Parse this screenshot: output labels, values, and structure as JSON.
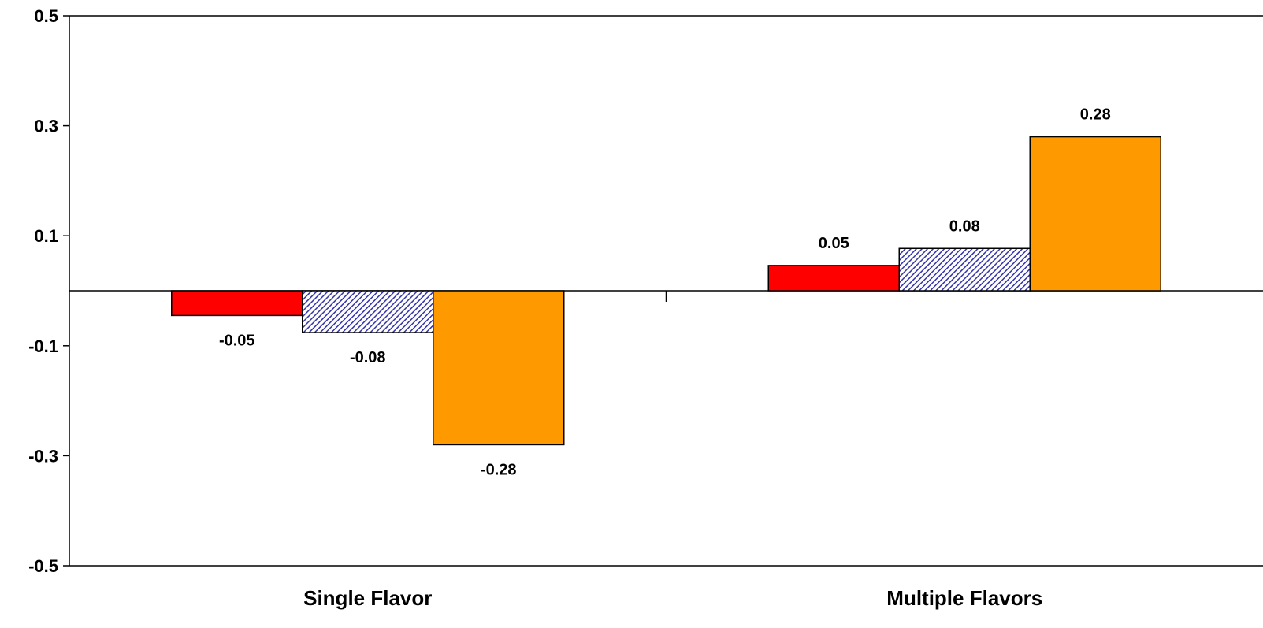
{
  "chart_data": {
    "type": "bar",
    "title": "",
    "xlabel": "",
    "ylabel": "",
    "categories": [
      "Single Flavor",
      "Multiple Flavors"
    ],
    "series": [
      {
        "values": [
          -0.045,
          0.046
        ],
        "labels": [
          "-0.05",
          "0.05"
        ],
        "color": "#FF0000",
        "pattern": "solid"
      },
      {
        "values": [
          -0.076,
          0.077
        ],
        "labels": [
          "-0.08",
          "0.08"
        ],
        "color": "#3333AA",
        "pattern": "diagonal-hatch"
      },
      {
        "values": [
          -0.28,
          0.28
        ],
        "labels": [
          "-0.28",
          "0.28"
        ],
        "color": "#FF9900",
        "pattern": "solid"
      }
    ],
    "ylim": [
      -0.5,
      0.5
    ],
    "yticks": [
      "0.5",
      "0.3",
      "0.1",
      "-0.1",
      "-0.3",
      "-0.5"
    ],
    "ytick_values": [
      0.5,
      0.3,
      0.1,
      -0.1,
      -0.3,
      -0.5
    ],
    "grid": false,
    "legend": "none"
  }
}
